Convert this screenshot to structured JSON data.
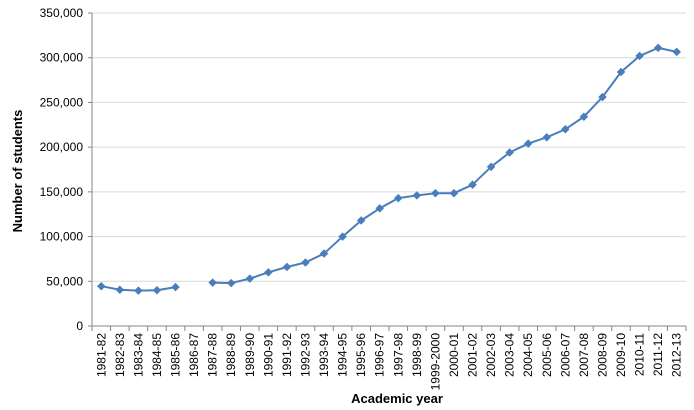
{
  "chart_data": {
    "type": "line",
    "title": "",
    "xlabel": "Academic year",
    "ylabel": "Number of students",
    "ylim": [
      0,
      350000
    ],
    "y_ticks": [
      0,
      50000,
      100000,
      150000,
      200000,
      250000,
      300000,
      350000
    ],
    "y_tick_labels": [
      "0",
      "50,000",
      "100,000",
      "150,000",
      "200,000",
      "250,000",
      "300,000",
      "350,000"
    ],
    "grid": "horizontal",
    "legend": "none",
    "colors": {
      "series": "#4a7ebb",
      "grid": "#d9d9d9",
      "axis": "#868686"
    },
    "categories": [
      "1981-82",
      "1982-83",
      "1983-84",
      "1984-85",
      "1985-86",
      "1986-87",
      "1987-88",
      "1988-89",
      "1989-90",
      "1990-91",
      "1991-92",
      "1992-93",
      "1993-94",
      "1994-95",
      "1995-96",
      "1996-97",
      "1997-98",
      "1998-99",
      "1999-2000",
      "2000-01",
      "2001-02",
      "2002-03",
      "2003-04",
      "2004-05",
      "2005-06",
      "2006-07",
      "2007-08",
      "2008-09",
      "2009-10",
      "2010-11",
      "2011-12",
      "2012-13"
    ],
    "series": [
      {
        "marker": "diamond",
        "values": [
          44500,
          40500,
          39500,
          40000,
          43500,
          null,
          48500,
          48000,
          53000,
          60000,
          66000,
          71000,
          81000,
          100000,
          118000,
          131500,
          143000,
          146000,
          148500,
          148500,
          158000,
          178000,
          194000,
          204000,
          211000,
          220000,
          234000,
          256000,
          284000,
          302000,
          311000,
          306500
        ]
      }
    ]
  }
}
